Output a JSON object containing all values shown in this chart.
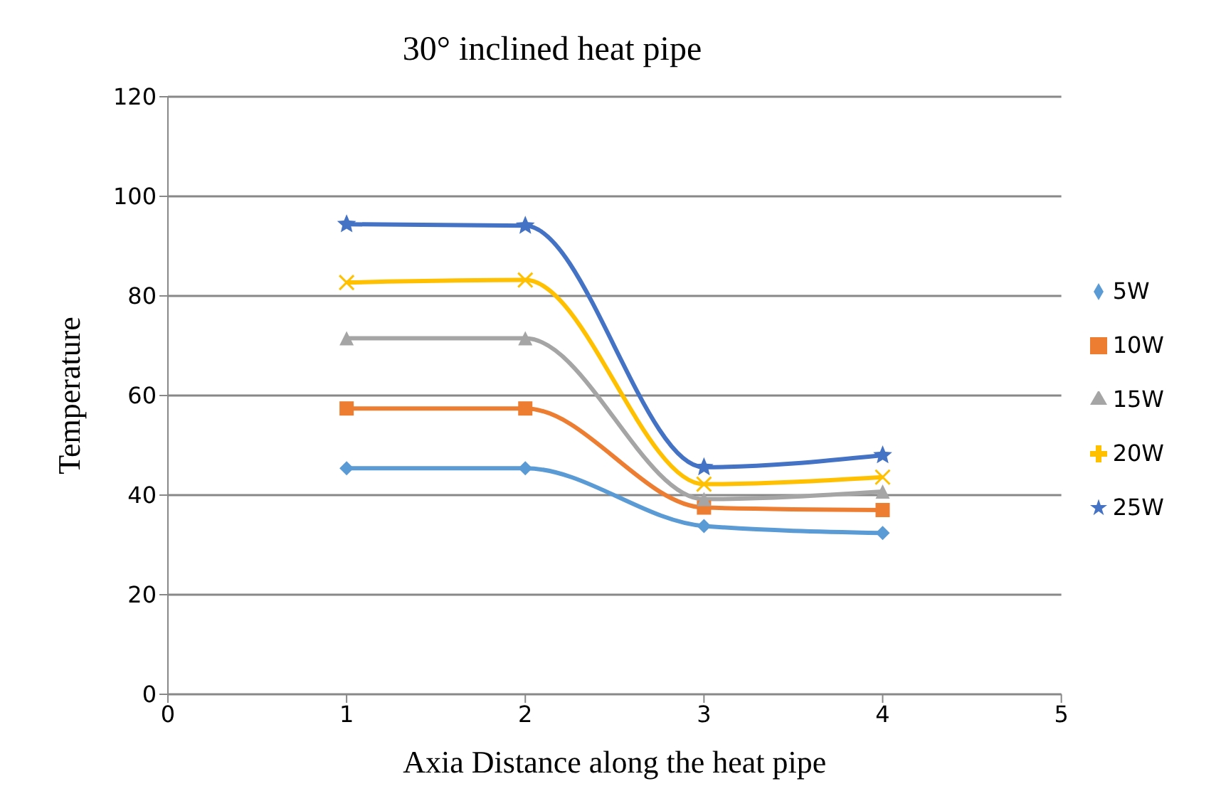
{
  "chart_data": {
    "type": "line",
    "title": "30° inclined heat pipe",
    "xlabel": "Axia Distance along the heat pipe",
    "ylabel": "Temperature",
    "x": [
      1,
      2,
      3,
      4
    ],
    "series": [
      {
        "name": "5W",
        "color": "#5b9bd5",
        "marker": "diamond",
        "values": [
          45.4,
          45.4,
          33.8,
          32.4
        ]
      },
      {
        "name": "10W",
        "color": "#ed7d31",
        "marker": "square",
        "values": [
          57.4,
          57.4,
          37.5,
          37
        ]
      },
      {
        "name": "15W",
        "color": "#a5a5a5",
        "marker": "triangle",
        "values": [
          71.5,
          71.5,
          39.2,
          40.7
        ]
      },
      {
        "name": "20W",
        "color": "#ffc000",
        "marker": "cross",
        "values": [
          82.7,
          83.2,
          42.2,
          43.6
        ]
      },
      {
        "name": "25W",
        "color": "#4472c4",
        "marker": "star",
        "values": [
          94.4,
          94.1,
          45.6,
          48
        ]
      }
    ],
    "xlim": [
      0,
      5
    ],
    "xticks": [
      0,
      1,
      2,
      3,
      4,
      5
    ],
    "ylim": [
      0,
      120
    ],
    "yticks": [
      0,
      20,
      40,
      60,
      80,
      100,
      120
    ],
    "grid": "y",
    "legend": "right",
    "line_style": "solid"
  }
}
